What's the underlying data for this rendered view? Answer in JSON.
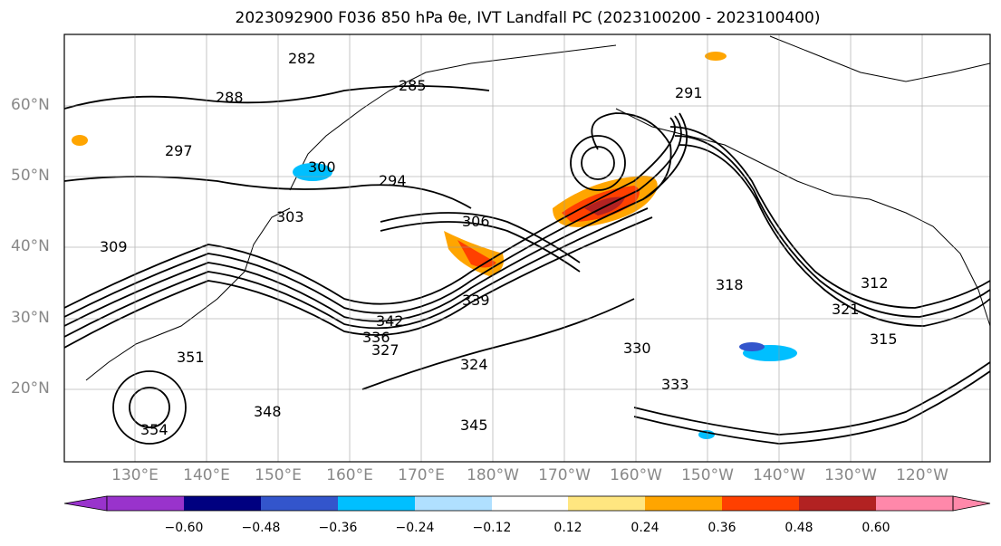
{
  "title": "2023092900 F036 850 hPa θe, IVT Landfall PC (2023100200 - 2023100400)",
  "latitude_labels": [
    "60°N",
    "50°N",
    "40°N",
    "30°N",
    "20°N"
  ],
  "longitude_labels": [
    "130°E",
    "140°E",
    "150°E",
    "160°E",
    "170°E",
    "180°W",
    "170°W",
    "160°W",
    "150°W",
    "140°W",
    "130°W",
    "120°W"
  ],
  "contour_labels": [
    "282",
    "285",
    "288",
    "291",
    "294",
    "297",
    "300",
    "303",
    "306",
    "309",
    "312",
    "315",
    "318",
    "321",
    "324",
    "327",
    "330",
    "333",
    "336",
    "339",
    "342",
    "345",
    "348",
    "351",
    "354"
  ],
  "colorbar": {
    "ticks": [
      "−0.60",
      "−0.48",
      "−0.36",
      "−0.24",
      "−0.12",
      "0.12",
      "0.24",
      "0.36",
      "0.48",
      "0.60"
    ],
    "colors": [
      "#9933cc",
      "#000080",
      "#3355cc",
      "#00bfff",
      "#b0e0ff",
      "#ffffff",
      "#ffe680",
      "#ffa500",
      "#ff4000",
      "#b22222",
      "#ff88aa"
    ]
  }
}
